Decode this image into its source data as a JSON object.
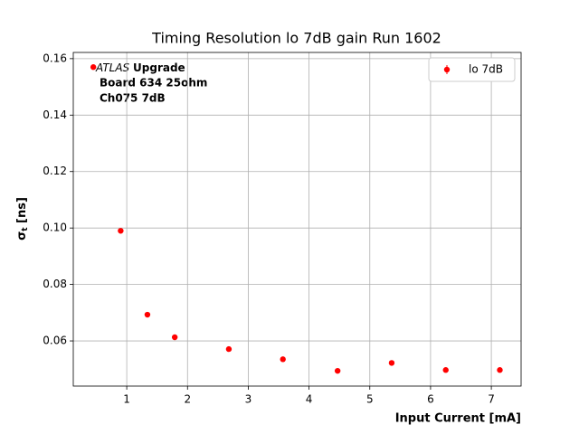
{
  "chart_data": {
    "type": "scatter",
    "title": "Timing Resolution lo 7dB gain Run 1602",
    "xlabel": "Input Current [mA]",
    "ylabel": {
      "symbol": "σ",
      "subscript": "t",
      "unit": "[ns]"
    },
    "annotation": {
      "italic": "ATLAS",
      "bold": "Upgrade",
      "lines": [
        "Board 634 25ohm",
        "Ch075 7dB"
      ]
    },
    "legend": "upper right",
    "grid": true,
    "x": [
      0.45,
      0.9,
      1.34,
      1.79,
      2.68,
      3.57,
      4.47,
      5.36,
      6.25,
      7.14
    ],
    "series": [
      {
        "name": "lo 7dB",
        "color": "#ff0000",
        "values": [
          0.157,
          0.099,
          0.0693,
          0.0613,
          0.0571,
          0.0535,
          0.0494,
          0.0522,
          0.0497,
          0.0497
        ]
      }
    ],
    "xlim": [
      0.12,
      7.49
    ],
    "ylim": [
      0.044,
      0.1622
    ],
    "xticks": [
      1,
      2,
      3,
      4,
      5,
      6,
      7
    ],
    "yticks": [
      {
        "value": 0.06,
        "label": "0.06"
      },
      {
        "value": 0.08,
        "label": "0.08"
      },
      {
        "value": 0.1,
        "label": "0.10"
      },
      {
        "value": 0.12,
        "label": "0.12"
      },
      {
        "value": 0.14,
        "label": "0.14"
      },
      {
        "value": 0.16,
        "label": "0.16"
      }
    ]
  }
}
